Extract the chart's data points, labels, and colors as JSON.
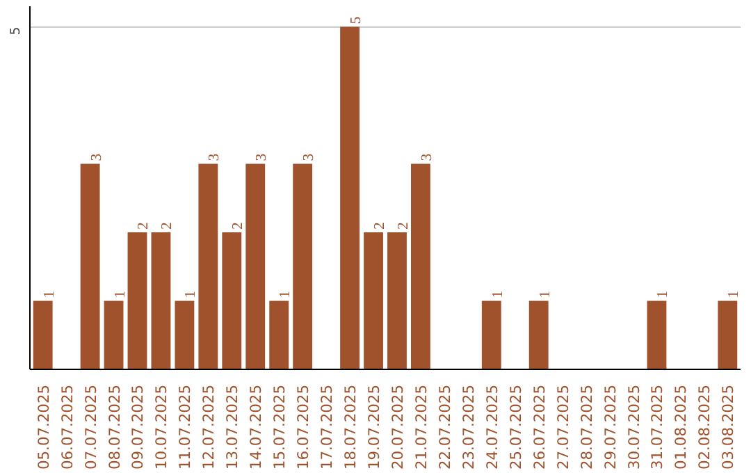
{
  "chart_data": {
    "type": "bar",
    "categories": [
      "05.07.2025",
      "06.07.2025",
      "07.07.2025",
      "08.07.2025",
      "09.07.2025",
      "10.07.2025",
      "11.07.2025",
      "12.07.2025",
      "13.07.2025",
      "14.07.2025",
      "15.07.2025",
      "16.07.2025",
      "17.07.2025",
      "18.07.2025",
      "19.07.2025",
      "20.07.2025",
      "21.07.2025",
      "22.07.2025",
      "23.07.2025",
      "24.07.2025",
      "25.07.2025",
      "26.07.2025",
      "27.07.2025",
      "28.07.2025",
      "29.07.2025",
      "30.07.2025",
      "31.07.2025",
      "01.08.2025",
      "02.08.2025",
      "03.08.2025"
    ],
    "values": [
      1,
      null,
      3,
      1,
      2,
      2,
      1,
      3,
      2,
      3,
      1,
      3,
      null,
      5,
      2,
      2,
      3,
      null,
      null,
      1,
      null,
      1,
      null,
      null,
      null,
      null,
      1,
      null,
      null,
      1
    ],
    "color": "#a0522d",
    "ylim": [
      0,
      5.3
    ],
    "yticks": [
      5
    ],
    "grid": "y",
    "data_labels": true
  }
}
